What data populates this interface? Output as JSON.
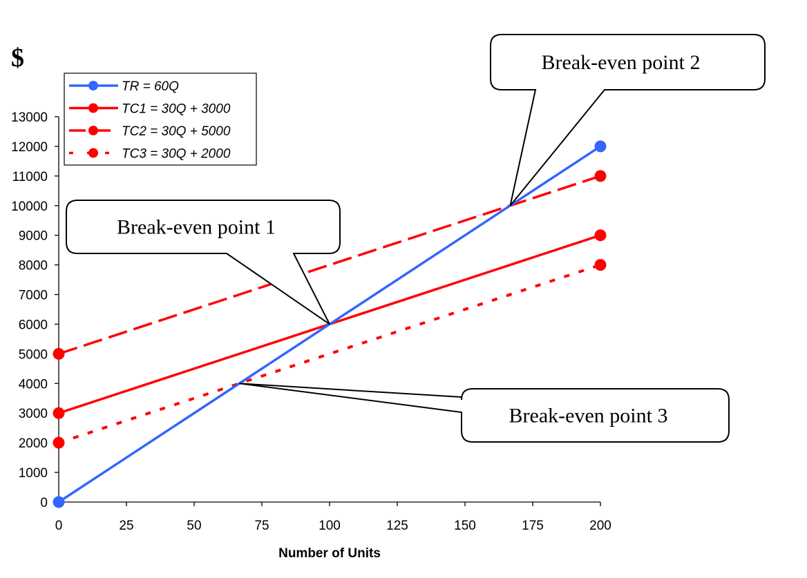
{
  "chart_data": {
    "type": "line",
    "title": "",
    "ylabel": "$",
    "xlabel": "Number of Units",
    "x": [
      0,
      200
    ],
    "xlim": [
      0,
      200
    ],
    "ylim": [
      0,
      13000
    ],
    "xticks": [
      0,
      25,
      50,
      75,
      100,
      125,
      150,
      175,
      200
    ],
    "yticks": [
      0,
      1000,
      2000,
      3000,
      4000,
      5000,
      6000,
      7000,
      8000,
      9000,
      10000,
      11000,
      12000,
      13000
    ],
    "grid": false,
    "legend_position": "top-left",
    "series": [
      {
        "name": "TR = 60Q",
        "values": [
          0,
          12000
        ],
        "color": "#3366ff",
        "style": "solid"
      },
      {
        "name": "TC1 = 30Q + 3000",
        "values": [
          3000,
          9000
        ],
        "color": "#ff0000",
        "style": "solid"
      },
      {
        "name": "TC2 = 30Q + 5000",
        "values": [
          5000,
          11000
        ],
        "color": "#ff0000",
        "style": "dashed"
      },
      {
        "name": "TC3 = 30Q + 2000",
        "values": [
          2000,
          8000
        ],
        "color": "#ff0000",
        "style": "dotted"
      }
    ],
    "annotations": [
      {
        "text": "Break-even point 1",
        "x": 100,
        "y": 6000
      },
      {
        "text": "Break-even point 2",
        "x": 166.7,
        "y": 10000
      },
      {
        "text": "Break-even point 3",
        "x": 66.7,
        "y": 4000
      }
    ]
  }
}
